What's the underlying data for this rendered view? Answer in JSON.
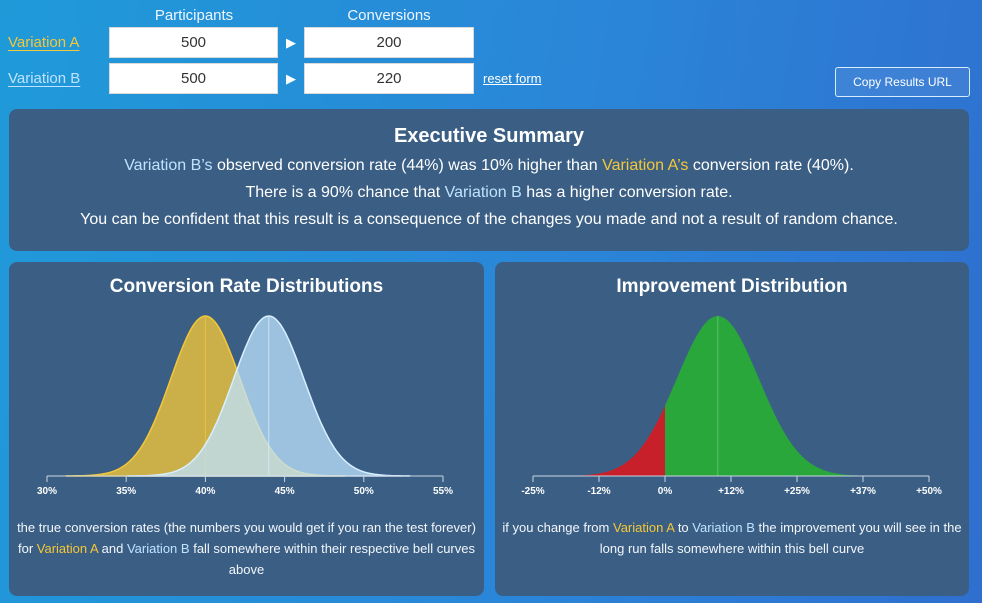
{
  "form": {
    "participants_header": "Participants",
    "conversions_header": "Conversions",
    "variation_a": {
      "label": "Variation A",
      "participants": "500",
      "conversions": "200"
    },
    "variation_b": {
      "label": "Variation B",
      "participants": "500",
      "conversions": "220"
    },
    "reset_label": "reset form",
    "copy_label": "Copy Results URL"
  },
  "summary": {
    "title": "Executive Summary",
    "line1_b": "Variation B’s",
    "line1_mid": "observed conversion rate (44%) was 10% higher than",
    "line1_a": "Variation A’s",
    "line1_end": "conversion rate (40%).",
    "line2_start": "There is a 90% chance that",
    "line2_b": "Variation B",
    "line2_end": "has a higher conversion rate.",
    "line3": "You can be confident that this result is a consequence of the changes you made and not a result of random chance."
  },
  "colors": {
    "variation_a": "#f4c739",
    "variation_b": "#bfe3ff",
    "panel": "#3b5f84",
    "improvement_positive": "#2aa73a",
    "improvement_negative": "#c8202a"
  },
  "chart_data": [
    {
      "type": "area",
      "title": "Conversion Rate Distributions",
      "x_ticks": [
        "30%",
        "35%",
        "40%",
        "45%",
        "50%",
        "55%"
      ],
      "xlim": [
        30,
        55
      ],
      "series": [
        {
          "name": "Variation A",
          "mean": 40,
          "sd": 2.19
        },
        {
          "name": "Variation B",
          "mean": 44,
          "sd": 2.22
        }
      ],
      "caption_start": "the true conversion rates (the numbers you would get if you ran the test forever) for",
      "caption_a": "Variation A",
      "caption_and": "and",
      "caption_b": "Variation B",
      "caption_end": "fall somewhere within their respective bell curves above"
    },
    {
      "type": "area",
      "title": "Improvement Distribution",
      "x_ticks": [
        "-25%",
        "-12%",
        "0%",
        "+12%",
        "+25%",
        "+37%",
        "+50%"
      ],
      "xlim": [
        -25,
        50
      ],
      "mean": 10,
      "sd": 7.8,
      "caption_start": "if you change from",
      "caption_a": "Variation A",
      "caption_to": "to",
      "caption_b": "Variation B",
      "caption_end": "the improvement you will see in the long run falls somewhere within this bell curve"
    }
  ]
}
